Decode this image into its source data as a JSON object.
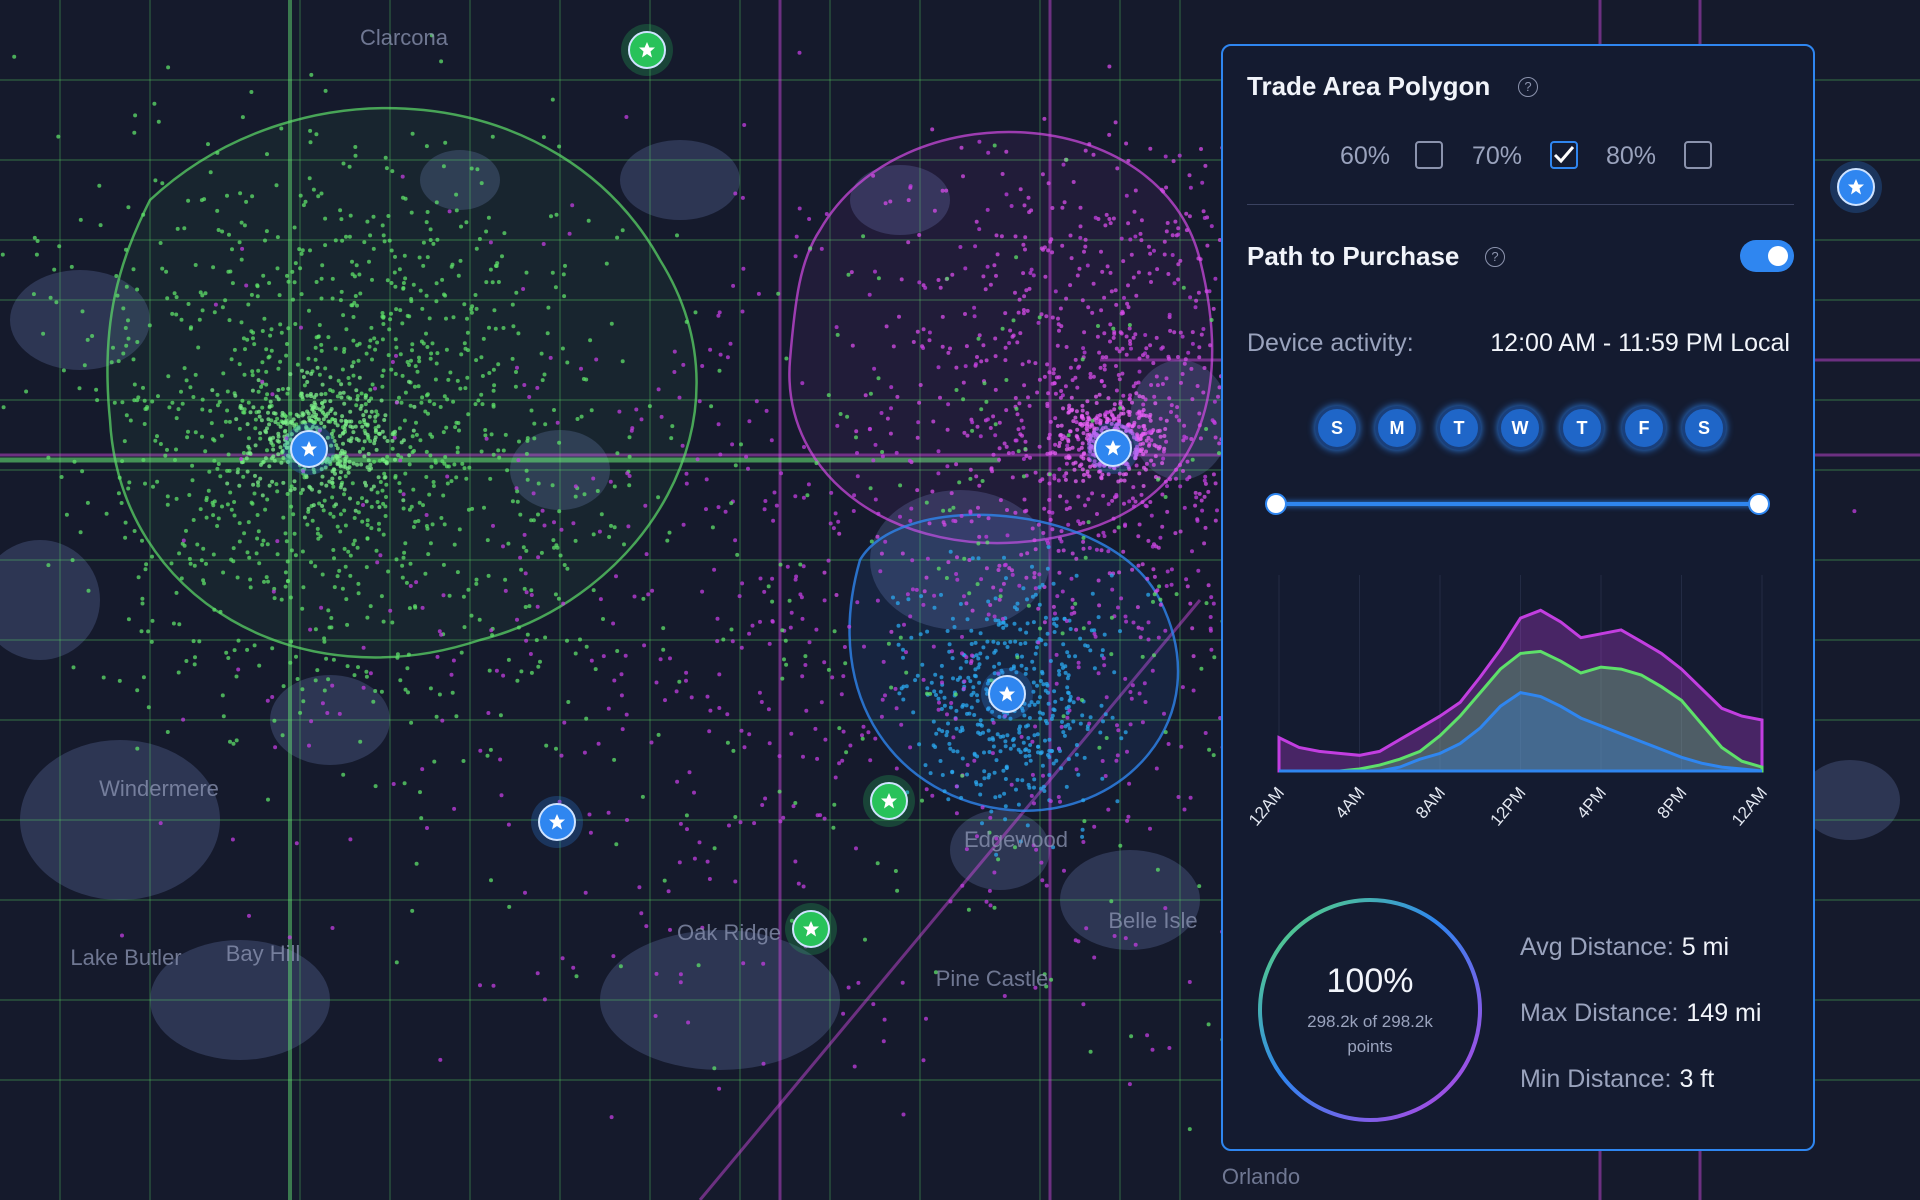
{
  "map": {
    "places": [
      "Clarcona",
      "Windermere",
      "Lake Butler",
      "Bay Hill",
      "Edgewood",
      "Oak Ridge",
      "Belle Isle",
      "Pine Castle",
      "Orlando"
    ]
  },
  "panel": {
    "trade_area_title": "Trade Area Polygon",
    "checkboxes": [
      {
        "label": "60%",
        "checked": false
      },
      {
        "label": "70%",
        "checked": true
      },
      {
        "label": "80%",
        "checked": false
      }
    ],
    "path_title": "Path to Purchase",
    "path_enabled": true,
    "device_activity_label": "Device activity:",
    "device_activity_value": "12:00 AM - 11:59 PM Local",
    "days": [
      "S",
      "M",
      "T",
      "W",
      "T",
      "F",
      "S"
    ],
    "percent": "100%",
    "points": "298.2k of 298.2k",
    "points_unit": "points",
    "stats": [
      {
        "label": "Avg Distance:",
        "value": "5 mi"
      },
      {
        "label": "Max Distance:",
        "value": "149 mi"
      },
      {
        "label": "Min Distance:",
        "value": "3 ft"
      }
    ]
  },
  "chart_data": {
    "type": "area",
    "x": [
      0,
      1,
      2,
      3,
      4,
      5,
      6,
      7,
      8,
      9,
      10,
      11,
      12,
      13,
      14,
      15,
      16,
      17,
      18,
      19,
      20,
      21,
      22,
      23,
      24
    ],
    "xlim": [
      0,
      24
    ],
    "xticks": [
      {
        "value": 0,
        "label": "12AM"
      },
      {
        "value": 4,
        "label": "4AM"
      },
      {
        "value": 8,
        "label": "8AM"
      },
      {
        "value": 12,
        "label": "12PM"
      },
      {
        "value": 16,
        "label": "4PM"
      },
      {
        "value": 20,
        "label": "8PM"
      },
      {
        "value": 24,
        "label": "12AM"
      }
    ],
    "ylim": [
      0,
      100
    ],
    "grid": true,
    "series": [
      {
        "color": "#c23ee0",
        "values": [
          17,
          12,
          10,
          9,
          8,
          10,
          16,
          22,
          28,
          35,
          48,
          62,
          78,
          82,
          76,
          68,
          70,
          72,
          66,
          60,
          52,
          42,
          32,
          28,
          26
        ]
      },
      {
        "color": "#5ee06a",
        "values": [
          0,
          0,
          0,
          0,
          1,
          3,
          6,
          10,
          18,
          28,
          40,
          52,
          60,
          61,
          56,
          50,
          53,
          52,
          49,
          43,
          36,
          24,
          12,
          5,
          2
        ]
      },
      {
        "color": "#2f86f0",
        "values": [
          0,
          0,
          0,
          0,
          0,
          0,
          2,
          6,
          9,
          14,
          22,
          33,
          40,
          38,
          33,
          27,
          23,
          19,
          15,
          11,
          7,
          4,
          2,
          1,
          0
        ]
      }
    ]
  }
}
